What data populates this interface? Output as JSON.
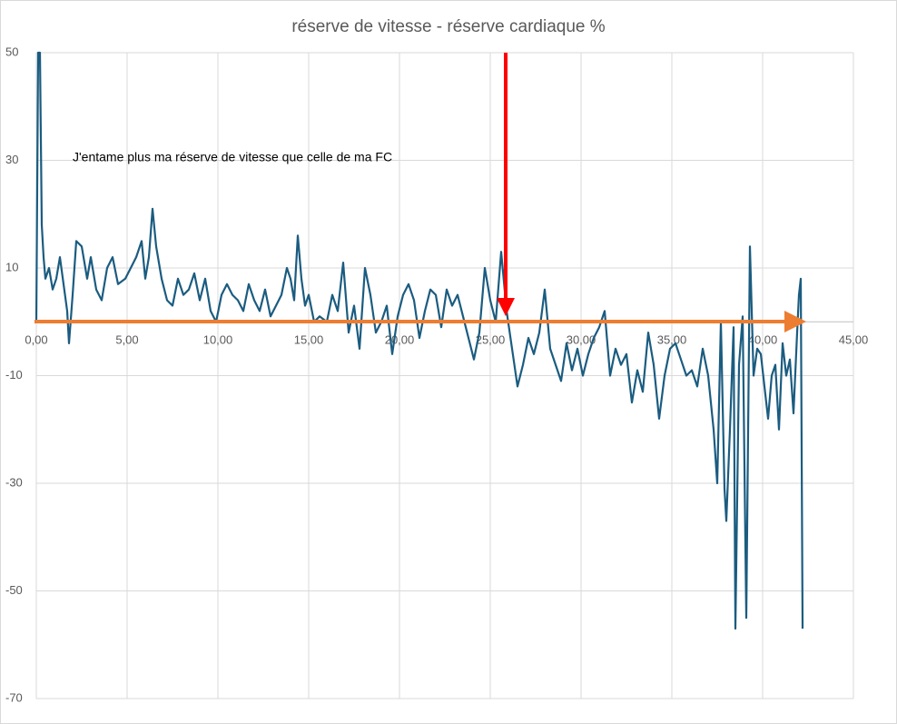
{
  "chart_data": {
    "type": "line",
    "title": "réserve de vitesse - réserve cardiaque %",
    "annotation": "J'entame plus ma réserve de vitesse que celle de ma FC",
    "xlim": [
      0,
      45
    ],
    "xticks": [
      {
        "value": 0,
        "label": "0,00"
      },
      {
        "value": 5,
        "label": "5,00"
      },
      {
        "value": 10,
        "label": "10,00"
      },
      {
        "value": 15,
        "label": "15,00"
      },
      {
        "value": 20,
        "label": "20,00"
      },
      {
        "value": 25,
        "label": "25,00"
      },
      {
        "value": 30,
        "label": "30,00"
      },
      {
        "value": 35,
        "label": "35,00"
      },
      {
        "value": 40,
        "label": "40,00"
      },
      {
        "value": 45,
        "label": "45,00"
      }
    ],
    "ylim": [
      -70,
      50
    ],
    "yticks": [
      50,
      30,
      10,
      -10,
      -30,
      -50,
      -70
    ],
    "grid": true,
    "x": [
      0,
      0.1,
      0.2,
      0.3,
      0.4,
      0.5,
      0.7,
      0.9,
      1.1,
      1.3,
      1.5,
      1.7,
      1.8,
      2.0,
      2.2,
      2.5,
      2.8,
      3.0,
      3.3,
      3.6,
      3.9,
      4.2,
      4.5,
      4.9,
      5.2,
      5.5,
      5.8,
      6.0,
      6.2,
      6.4,
      6.6,
      6.9,
      7.2,
      7.5,
      7.8,
      8.1,
      8.4,
      8.7,
      9.0,
      9.3,
      9.6,
      9.9,
      10.2,
      10.5,
      10.8,
      11.1,
      11.4,
      11.7,
      12.0,
      12.3,
      12.6,
      12.9,
      13.2,
      13.5,
      13.8,
      14.0,
      14.2,
      14.4,
      14.6,
      14.8,
      15.0,
      15.3,
      15.6,
      16.0,
      16.3,
      16.6,
      16.9,
      17.2,
      17.5,
      17.8,
      18.1,
      18.4,
      18.7,
      19.0,
      19.3,
      19.6,
      19.9,
      20.2,
      20.5,
      20.8,
      21.1,
      21.4,
      21.7,
      22.0,
      22.3,
      22.6,
      22.9,
      23.2,
      23.5,
      23.8,
      24.1,
      24.4,
      24.7,
      25.0,
      25.3,
      25.6,
      25.9,
      26.2,
      26.5,
      26.8,
      27.1,
      27.4,
      27.7,
      28.0,
      28.3,
      28.6,
      28.9,
      29.2,
      29.5,
      29.8,
      30.1,
      30.4,
      30.7,
      31.0,
      31.3,
      31.6,
      31.9,
      32.2,
      32.5,
      32.8,
      33.1,
      33.4,
      33.7,
      34.0,
      34.3,
      34.6,
      34.9,
      35.2,
      35.5,
      35.8,
      36.1,
      36.4,
      36.7,
      37.0,
      37.3,
      37.5,
      37.7,
      37.9,
      38.0,
      38.2,
      38.4,
      38.5,
      38.7,
      38.9,
      39.1,
      39.3,
      39.5,
      39.7,
      39.9,
      40.1,
      40.3,
      40.5,
      40.7,
      40.9,
      41.1,
      41.3,
      41.5,
      41.7,
      41.9,
      42.0,
      42.1,
      42.2
    ],
    "series": [
      {
        "color": "#1b5c80",
        "values": [
          0,
          50,
          50,
          18,
          12,
          8,
          10,
          6,
          8,
          12,
          7,
          2,
          -4,
          5,
          15,
          14,
          8,
          12,
          6,
          4,
          10,
          12,
          7,
          8,
          10,
          12,
          15,
          8,
          12,
          21,
          14,
          8,
          4,
          3,
          8,
          5,
          6,
          9,
          4,
          8,
          2,
          0,
          5,
          7,
          5,
          4,
          2,
          7,
          4,
          2,
          6,
          1,
          3,
          5,
          10,
          8,
          4,
          16,
          8,
          3,
          5,
          0,
          1,
          0,
          5,
          2,
          11,
          -2,
          3,
          -5,
          10,
          5,
          -2,
          0,
          3,
          -6,
          1,
          5,
          7,
          4,
          -3,
          2,
          6,
          5,
          -1,
          6,
          3,
          5,
          1,
          -3,
          -7,
          -2,
          10,
          4,
          0,
          13,
          2,
          -5,
          -12,
          -8,
          -3,
          -6,
          -2,
          6,
          -5,
          -8,
          -11,
          -4,
          -9,
          -5,
          -10,
          -6,
          -3,
          -1,
          2,
          -10,
          -5,
          -8,
          -6,
          -15,
          -9,
          -13,
          -2,
          -8,
          -18,
          -10,
          -5,
          -4,
          -7,
          -10,
          -9,
          -12,
          -5,
          -10,
          -20,
          -30,
          0,
          -31,
          -37,
          -20,
          -1,
          -57,
          -8,
          1,
          -55,
          14,
          -10,
          -5,
          -6,
          -12,
          -18,
          -10,
          -8,
          -20,
          -4,
          -10,
          -7,
          -17,
          -2,
          5,
          8,
          -57
        ]
      }
    ]
  }
}
